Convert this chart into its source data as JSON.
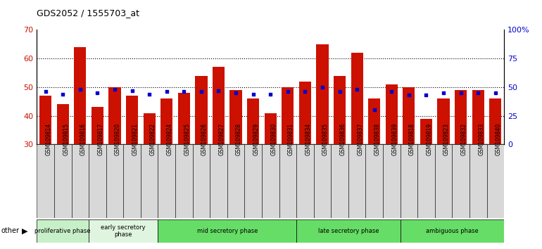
{
  "title": "GDS2052 / 1555703_at",
  "samples": [
    "GSM109814",
    "GSM109815",
    "GSM109816",
    "GSM109817",
    "GSM109820",
    "GSM109821",
    "GSM109822",
    "GSM109824",
    "GSM109825",
    "GSM109826",
    "GSM109827",
    "GSM109828",
    "GSM109829",
    "GSM109830",
    "GSM109831",
    "GSM109834",
    "GSM109835",
    "GSM109836",
    "GSM109837",
    "GSM109838",
    "GSM109839",
    "GSM109818",
    "GSM109819",
    "GSM109823",
    "GSM109832",
    "GSM109833",
    "GSM109840"
  ],
  "count_values": [
    47,
    44,
    64,
    43,
    50,
    47,
    41,
    46,
    48,
    54,
    57,
    49,
    46,
    41,
    50,
    52,
    65,
    54,
    62,
    46,
    51,
    50,
    39,
    46,
    49,
    49,
    46
  ],
  "percentile_values": [
    46,
    44,
    48,
    45,
    48,
    47,
    44,
    46,
    46,
    46,
    47,
    45,
    44,
    44,
    46,
    46,
    50,
    46,
    48,
    30,
    46,
    43,
    43,
    45,
    45,
    45,
    45
  ],
  "phases": [
    {
      "label": "proliferative phase",
      "start": 0,
      "end": 3,
      "color": "#c8f0c8"
    },
    {
      "label": "early secretory\nphase",
      "start": 3,
      "end": 7,
      "color": "#e0f5e0"
    },
    {
      "label": "mid secretory phase",
      "start": 7,
      "end": 15,
      "color": "#66dd66"
    },
    {
      "label": "late secretory phase",
      "start": 15,
      "end": 21,
      "color": "#66dd66"
    },
    {
      "label": "ambiguous phase",
      "start": 21,
      "end": 27,
      "color": "#66dd66"
    }
  ],
  "ylim_left": [
    30,
    70
  ],
  "ylim_right": [
    0,
    100
  ],
  "bar_color": "#cc1100",
  "percentile_color": "#0000cc",
  "tick_label_bg": "#d8d8d8"
}
